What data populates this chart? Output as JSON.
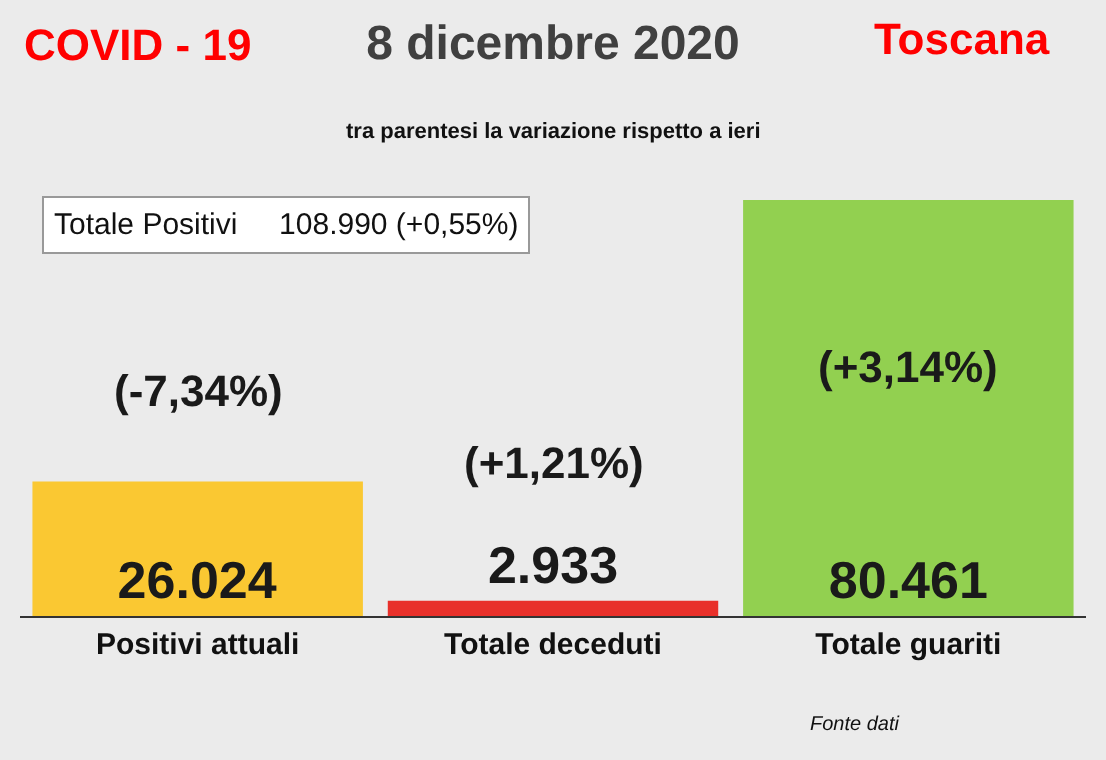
{
  "chart_data": {
    "type": "bar",
    "title": "8 dicembre 2020",
    "subtitle": "tra parentesi la variazione rispetto a ieri",
    "categories": [
      "Positivi attuali",
      "Totale deceduti",
      "Totale guariti"
    ],
    "values": [
      26024,
      2933,
      80461
    ],
    "colors": [
      "#fac832",
      "#e8302a",
      "#92d050"
    ],
    "value_labels": [
      "26.024",
      "2.933",
      "80.461"
    ],
    "annotations": [
      "COVID - 19",
      "Toscana",
      "Totale Positivi     108.990 (+0,55%)",
      "(-7,34%)",
      "(+1,21%)",
      "(+3,14%)",
      "Fonte dati"
    ],
    "legend": false
  }
}
